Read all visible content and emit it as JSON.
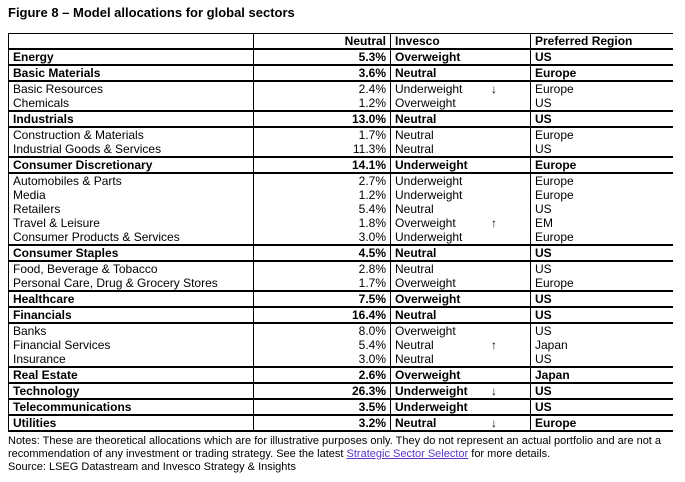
{
  "title": "Figure 8 – Model allocations for global sectors",
  "colors": {
    "link": "#5b35c4",
    "border": "#000000",
    "text": "#000000",
    "background": "#ffffff"
  },
  "table": {
    "headers": [
      "",
      "Neutral",
      "Invesco",
      "Preferred Region"
    ],
    "rows": [
      {
        "sector": "Energy",
        "neutral": "5.3%",
        "invesco": "Overweight",
        "arrow": "",
        "region": "US",
        "bold": true
      },
      {
        "sector": "Basic Materials",
        "neutral": "3.6%",
        "invesco": "Neutral",
        "arrow": "",
        "region": "Europe",
        "bold": true
      },
      {
        "sector": "Basic Resources",
        "neutral": "2.4%",
        "invesco": "Underweight",
        "arrow": "↓",
        "region": "Europe",
        "bold": false
      },
      {
        "sector": "Chemicals",
        "neutral": "1.2%",
        "invesco": "Overweight",
        "arrow": "",
        "region": "US",
        "bold": false
      },
      {
        "sector": "Industrials",
        "neutral": "13.0%",
        "invesco": "Neutral",
        "arrow": "",
        "region": "US",
        "bold": true
      },
      {
        "sector": "Construction & Materials",
        "neutral": "1.7%",
        "invesco": "Neutral",
        "arrow": "",
        "region": "Europe",
        "bold": false
      },
      {
        "sector": "Industrial Goods & Services",
        "neutral": "11.3%",
        "invesco": "Neutral",
        "arrow": "",
        "region": "US",
        "bold": false
      },
      {
        "sector": "Consumer Discretionary",
        "neutral": "14.1%",
        "invesco": "Underweight",
        "arrow": "",
        "region": "Europe",
        "bold": true
      },
      {
        "sector": "Automobiles & Parts",
        "neutral": "2.7%",
        "invesco": "Underweight",
        "arrow": "",
        "region": "Europe",
        "bold": false
      },
      {
        "sector": "Media",
        "neutral": "1.2%",
        "invesco": "Underweight",
        "arrow": "",
        "region": "Europe",
        "bold": false
      },
      {
        "sector": "Retailers",
        "neutral": "5.4%",
        "invesco": "Neutral",
        "arrow": "",
        "region": "US",
        "bold": false
      },
      {
        "sector": "Travel & Leisure",
        "neutral": "1.8%",
        "invesco": "Overweight",
        "arrow": "↑",
        "region": "EM",
        "bold": false
      },
      {
        "sector": "Consumer Products & Services",
        "neutral": "3.0%",
        "invesco": "Underweight",
        "arrow": "",
        "region": "Europe",
        "bold": false
      },
      {
        "sector": "Consumer Staples",
        "neutral": "4.5%",
        "invesco": "Neutral",
        "arrow": "",
        "region": "US",
        "bold": true
      },
      {
        "sector": "Food, Beverage & Tobacco",
        "neutral": "2.8%",
        "invesco": "Neutral",
        "arrow": "",
        "region": "US",
        "bold": false
      },
      {
        "sector": "Personal Care, Drug & Grocery Stores",
        "neutral": "1.7%",
        "invesco": "Overweight",
        "arrow": "",
        "region": "Europe",
        "bold": false
      },
      {
        "sector": "Healthcare",
        "neutral": "7.5%",
        "invesco": "Overweight",
        "arrow": "",
        "region": "US",
        "bold": true
      },
      {
        "sector": "Financials",
        "neutral": "16.4%",
        "invesco": "Neutral",
        "arrow": "",
        "region": "US",
        "bold": true
      },
      {
        "sector": "Banks",
        "neutral": "8.0%",
        "invesco": "Overweight",
        "arrow": "",
        "region": "US",
        "bold": false
      },
      {
        "sector": "Financial Services",
        "neutral": "5.4%",
        "invesco": "Neutral",
        "arrow": "↑",
        "region": "Japan",
        "bold": false
      },
      {
        "sector": "Insurance",
        "neutral": "3.0%",
        "invesco": "Neutral",
        "arrow": "",
        "region": "US",
        "bold": false
      },
      {
        "sector": "Real Estate",
        "neutral": "2.6%",
        "invesco": "Overweight",
        "arrow": "",
        "region": "Japan",
        "bold": true
      },
      {
        "sector": "Technology",
        "neutral": "26.3%",
        "invesco": "Underweight",
        "arrow": "↓",
        "region": "US",
        "bold": true
      },
      {
        "sector": "Telecommunications",
        "neutral": "3.5%",
        "invesco": "Underweight",
        "arrow": "",
        "region": "US",
        "bold": true
      },
      {
        "sector": "Utilities",
        "neutral": "3.2%",
        "invesco": "Neutral",
        "arrow": "↓",
        "region": "Europe",
        "bold": true
      }
    ]
  },
  "notes": {
    "text_before_link": "Notes: These are theoretical allocations which are for illustrative purposes only. They do not represent an actual portfolio and are not a recommendation of any investment or trading strategy. See the latest ",
    "link_text": "Strategic Sector Selector",
    "text_after_link": " for more details.",
    "source": "Source: LSEG Datastream and Invesco Strategy & Insights"
  }
}
